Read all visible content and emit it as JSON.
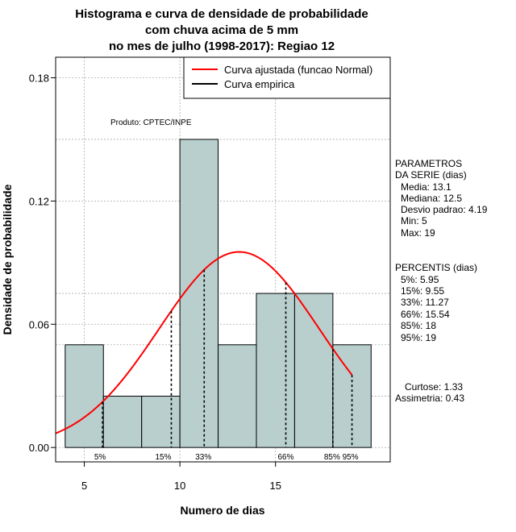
{
  "chart_data": {
    "type": "histogram",
    "title_lines": [
      "Histograma e curva de densidade de probabilidade",
      "com chuva acima de 5 mm",
      "no mes de julho (1998-2017): Regiao 12"
    ],
    "xlabel": "Numero de dias",
    "ylabel": "Densidade de probabilidade",
    "xlim": [
      3.5,
      21
    ],
    "ylim": [
      -0.007,
      0.19
    ],
    "x_ticks": [
      5,
      10,
      15
    ],
    "y_ticks": [
      0.0,
      0.06,
      0.12,
      0.18
    ],
    "y_tick_labels": [
      "0.00",
      "0.06",
      "0.12",
      "0.18"
    ],
    "bar_color": "#b8cfce",
    "bars": [
      {
        "x0": 4,
        "x1": 6,
        "density": 0.05
      },
      {
        "x0": 6,
        "x1": 8,
        "density": 0.025
      },
      {
        "x0": 8,
        "x1": 10,
        "density": 0.025
      },
      {
        "x0": 10,
        "x1": 12,
        "density": 0.15
      },
      {
        "x0": 12,
        "x1": 14,
        "density": 0.05
      },
      {
        "x0": 14,
        "x1": 16,
        "density": 0.075
      },
      {
        "x0": 16,
        "x1": 18,
        "density": 0.075
      },
      {
        "x0": 18,
        "x1": 20,
        "density": 0.05
      }
    ],
    "normal_curve": {
      "mean": 13.1,
      "sd": 4.19,
      "x_from": 3.5,
      "x_to": 19,
      "color": "#ff0000"
    },
    "percentile_lines": [
      {
        "label": "5%",
        "x": 5.95
      },
      {
        "label": "15%",
        "x": 9.55
      },
      {
        "label": "33%",
        "x": 11.27
      },
      {
        "label": "66%",
        "x": 15.54
      },
      {
        "label": "85%",
        "x": 18
      },
      {
        "label": "95%",
        "x": 19
      }
    ],
    "legend": [
      {
        "label": "Curva ajustada (funcao Normal)",
        "color": "#ff0000"
      },
      {
        "label": "Curva empirica",
        "color": "#000000"
      }
    ],
    "annotation": "Produto: CPTEC/INPE"
  },
  "parametros": {
    "heading1": "PARAMETROS",
    "heading2": "DA SERIE (dias)",
    "lines": [
      "Media: 13.1",
      "Mediana: 12.5",
      "Desvio padrao: 4.19",
      "Min: 5",
      "Max: 19"
    ]
  },
  "percentis": {
    "heading": "PERCENTIS (dias)",
    "lines": [
      "5%: 5.95",
      "15%: 9.55",
      "33%: 11.27",
      "66%: 15.54",
      "85%: 18",
      "95%: 19"
    ]
  },
  "stats": {
    "curtose": "Curtose: 1.33",
    "assimetria": "Assimetria: 0.43"
  }
}
